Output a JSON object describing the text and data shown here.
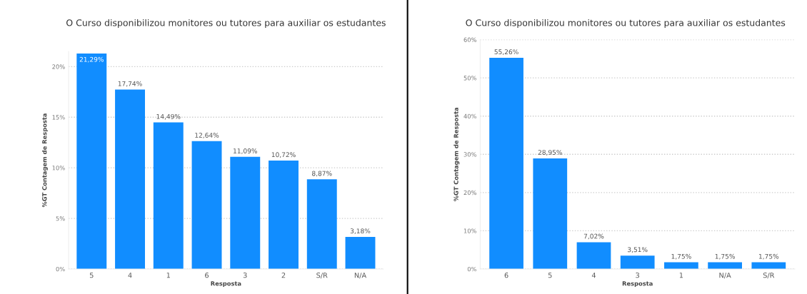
{
  "chart_data": [
    {
      "type": "bar",
      "title": "O Curso disponibilizou monitores ou tutores para auxiliar os estudantes",
      "xlabel": "Resposta",
      "ylabel": "%GT Contagem de Resposta",
      "categories": [
        "5",
        "4",
        "1",
        "6",
        "3",
        "2",
        "S/R",
        "N/A"
      ],
      "values": [
        21.29,
        17.74,
        14.49,
        12.64,
        11.09,
        10.72,
        8.87,
        3.18
      ],
      "value_labels": [
        "21,29%",
        "17,74%",
        "14,49%",
        "12,64%",
        "11,09%",
        "10,72%",
        "8,87%",
        "3,18%"
      ],
      "color": "#118dff",
      "ylim": [
        0,
        21.5
      ],
      "yticks": [
        {
          "value": 0,
          "label": "0%"
        },
        {
          "value": 5,
          "label": "5%"
        },
        {
          "value": 10,
          "label": "10%"
        },
        {
          "value": 15,
          "label": "15%"
        },
        {
          "value": 20,
          "label": "20%"
        }
      ],
      "grid": "y"
    },
    {
      "type": "bar",
      "title": "O Curso disponibilizou monitores ou tutores para auxiliar os estudantes",
      "xlabel": "Resposta",
      "ylabel": "%GT Contagem de Resposta",
      "categories": [
        "6",
        "5",
        "4",
        "3",
        "1",
        "N/A",
        "S/R"
      ],
      "values": [
        55.26,
        28.95,
        7.02,
        3.51,
        1.75,
        1.75,
        1.75
      ],
      "value_labels": [
        "55,26%",
        "28,95%",
        "7,02%",
        "3,51%",
        "1,75%",
        "1,75%",
        "1,75%"
      ],
      "color": "#118dff",
      "ylim": [
        0,
        60
      ],
      "yticks": [
        {
          "value": 0,
          "label": "0%"
        },
        {
          "value": 10,
          "label": "10%"
        },
        {
          "value": 20,
          "label": "20%"
        },
        {
          "value": 30,
          "label": "30%"
        },
        {
          "value": 40,
          "label": "40%"
        },
        {
          "value": 50,
          "label": "50%"
        },
        {
          "value": 60,
          "label": "60%"
        }
      ],
      "grid": "y"
    }
  ]
}
